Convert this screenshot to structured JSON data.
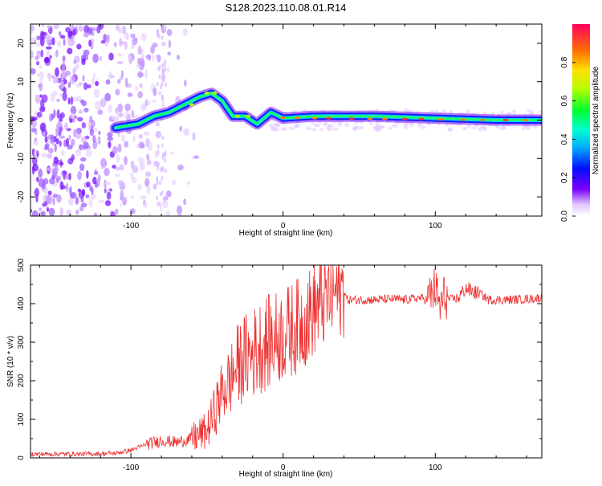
{
  "title": "S128.2023.110.08.01.R14",
  "chart_data": [
    {
      "type": "heatmap",
      "xlabel": "Height of straight line (km)",
      "ylabel": "Frequency (Hz)",
      "xlim": [
        -166,
        170
      ],
      "ylim": [
        -25,
        25
      ],
      "x_ticks": [
        -100,
        0,
        100
      ],
      "y_ticks": [
        -20,
        -10,
        0,
        10,
        20
      ],
      "colorbar": {
        "label": "Normalized spectral amplitude",
        "range": [
          0,
          1
        ],
        "ticks": [
          "0.0",
          "0.2",
          "0.4",
          "0.6",
          "0.8"
        ]
      },
      "ridge": [
        {
          "x": -110,
          "y": -2
        },
        {
          "x": -95,
          "y": -1
        },
        {
          "x": -85,
          "y": 1
        },
        {
          "x": -75,
          "y": 2
        },
        {
          "x": -65,
          "y": 4
        },
        {
          "x": -55,
          "y": 6
        },
        {
          "x": -47,
          "y": 7
        },
        {
          "x": -40,
          "y": 5
        },
        {
          "x": -33,
          "y": 1
        },
        {
          "x": -25,
          "y": 1
        },
        {
          "x": -17,
          "y": -1
        },
        {
          "x": -8,
          "y": 2
        },
        {
          "x": 0,
          "y": 0.5
        },
        {
          "x": 20,
          "y": 1
        },
        {
          "x": 60,
          "y": 1
        },
        {
          "x": 100,
          "y": 0.5
        },
        {
          "x": 140,
          "y": 0
        },
        {
          "x": 170,
          "y": 0
        }
      ]
    },
    {
      "type": "line",
      "xlabel": "Height of straight line (km)",
      "ylabel": "SNR (10 * v/v)",
      "xlim": [
        -166,
        170
      ],
      "ylim": [
        0,
        500
      ],
      "x_ticks": [
        -100,
        0,
        100
      ],
      "y_ticks": [
        0,
        100,
        200,
        300,
        400,
        500
      ],
      "color": "#ee3030",
      "series": [
        {
          "x": [
            -166,
            -150,
            -130,
            -110,
            -100,
            -90,
            -80,
            -70,
            -60,
            -50,
            -45,
            -40,
            -35,
            -30,
            -25,
            -20,
            -15,
            -10,
            -5,
            0,
            5,
            10,
            15,
            20,
            25,
            30,
            35,
            40,
            42,
            45,
            50,
            60,
            70,
            80,
            90,
            95,
            100,
            103,
            106,
            110,
            115,
            120,
            125,
            130,
            135,
            140,
            150,
            160,
            170
          ],
          "y": [
            10,
            10,
            10,
            12,
            20,
            35,
            45,
            40,
            50,
            70,
            120,
            170,
            200,
            240,
            260,
            270,
            290,
            300,
            310,
            320,
            330,
            345,
            360,
            385,
            400,
            420,
            430,
            435,
            410,
            410,
            410,
            410,
            412,
            410,
            415,
            410,
            440,
            390,
            420,
            410,
            415,
            440,
            430,
            425,
            410,
            410,
            410,
            412,
            415
          ]
        }
      ]
    }
  ]
}
